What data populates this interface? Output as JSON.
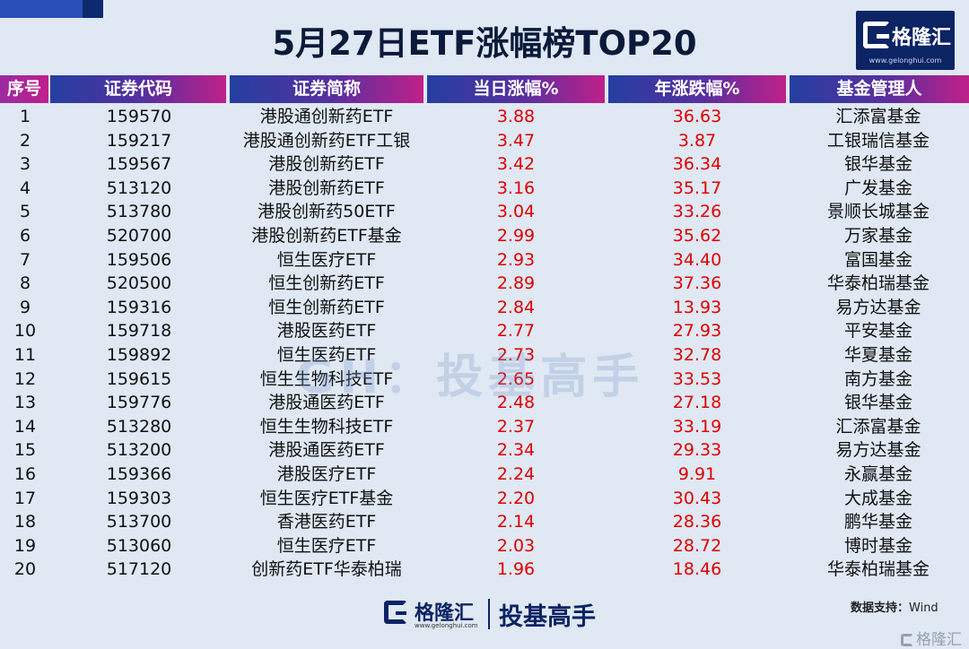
{
  "title": "5月27日ETF涨幅榜TOP20",
  "logo": {
    "text": "格隆汇",
    "url": "www.gelonghui.com"
  },
  "headers": [
    "序号",
    "证券代码",
    "证券简称",
    "当日涨幅%",
    "年涨跌幅%",
    "基金管理人"
  ],
  "rows": [
    {
      "idx": "1",
      "code": "159570",
      "name": "港股通创新药ETF",
      "day": "3.88",
      "year": "36.63",
      "mgr": "汇添富基金"
    },
    {
      "idx": "2",
      "code": "159217",
      "name": "港股通创新药ETF工银",
      "day": "3.47",
      "year": "3.87",
      "mgr": "工银瑞信基金"
    },
    {
      "idx": "3",
      "code": "159567",
      "name": "港股创新药ETF",
      "day": "3.42",
      "year": "36.34",
      "mgr": "银华基金"
    },
    {
      "idx": "4",
      "code": "513120",
      "name": "港股创新药ETF",
      "day": "3.16",
      "year": "35.17",
      "mgr": "广发基金"
    },
    {
      "idx": "5",
      "code": "513780",
      "name": "港股创新药50ETF",
      "day": "3.04",
      "year": "33.26",
      "mgr": "景顺长城基金"
    },
    {
      "idx": "6",
      "code": "520700",
      "name": "港股创新药ETF基金",
      "day": "2.99",
      "year": "35.62",
      "mgr": "万家基金"
    },
    {
      "idx": "7",
      "code": "159506",
      "name": "恒生医疗ETF",
      "day": "2.93",
      "year": "34.40",
      "mgr": "富国基金"
    },
    {
      "idx": "8",
      "code": "520500",
      "name": "恒生创新药ETF",
      "day": "2.89",
      "year": "37.36",
      "mgr": "华泰柏瑞基金"
    },
    {
      "idx": "9",
      "code": "159316",
      "name": "恒生创新药ETF",
      "day": "2.84",
      "year": "13.93",
      "mgr": "易方达基金"
    },
    {
      "idx": "10",
      "code": "159718",
      "name": "港股医药ETF",
      "day": "2.77",
      "year": "27.93",
      "mgr": "平安基金"
    },
    {
      "idx": "11",
      "code": "159892",
      "name": "恒生医药ETF",
      "day": "2.73",
      "year": "32.78",
      "mgr": "华夏基金"
    },
    {
      "idx": "12",
      "code": "159615",
      "name": "恒生生物科技ETF",
      "day": "2.65",
      "year": "33.53",
      "mgr": "南方基金"
    },
    {
      "idx": "13",
      "code": "159776",
      "name": "港股通医药ETF",
      "day": "2.48",
      "year": "27.18",
      "mgr": "银华基金"
    },
    {
      "idx": "14",
      "code": "513280",
      "name": "恒生生物科技ETF",
      "day": "2.37",
      "year": "33.19",
      "mgr": "汇添富基金"
    },
    {
      "idx": "15",
      "code": "513200",
      "name": "港股通医药ETF",
      "day": "2.34",
      "year": "29.33",
      "mgr": "易方达基金"
    },
    {
      "idx": "16",
      "code": "159366",
      "name": "港股医疗ETF",
      "day": "2.24",
      "year": "9.91",
      "mgr": "永赢基金"
    },
    {
      "idx": "17",
      "code": "159303",
      "name": "恒生医疗ETF基金",
      "day": "2.20",
      "year": "30.43",
      "mgr": "大成基金"
    },
    {
      "idx": "18",
      "code": "513700",
      "name": "香港医药ETF",
      "day": "2.14",
      "year": "28.36",
      "mgr": "鹏华基金"
    },
    {
      "idx": "19",
      "code": "513060",
      "name": "恒生医疗ETF",
      "day": "2.03",
      "year": "28.72",
      "mgr": "博时基金"
    },
    {
      "idx": "20",
      "code": "517120",
      "name": "创新药ETF华泰柏瑞",
      "day": "1.96",
      "year": "18.46",
      "mgr": "华泰柏瑞基金"
    }
  ],
  "watermark": "GH：投基高手",
  "source": {
    "label": "数据支持：",
    "value": "Wind"
  },
  "bottom_brand": {
    "name": "格隆汇",
    "url": "www.gelonghui.com",
    "tag": "投基高手"
  },
  "corner_watermark": "格隆汇",
  "colors": {
    "header_start": "#243fa0",
    "header_end": "#c0208a",
    "positive": "#e00000",
    "background": "#dfe8f3",
    "brand": "#0c2364"
  }
}
